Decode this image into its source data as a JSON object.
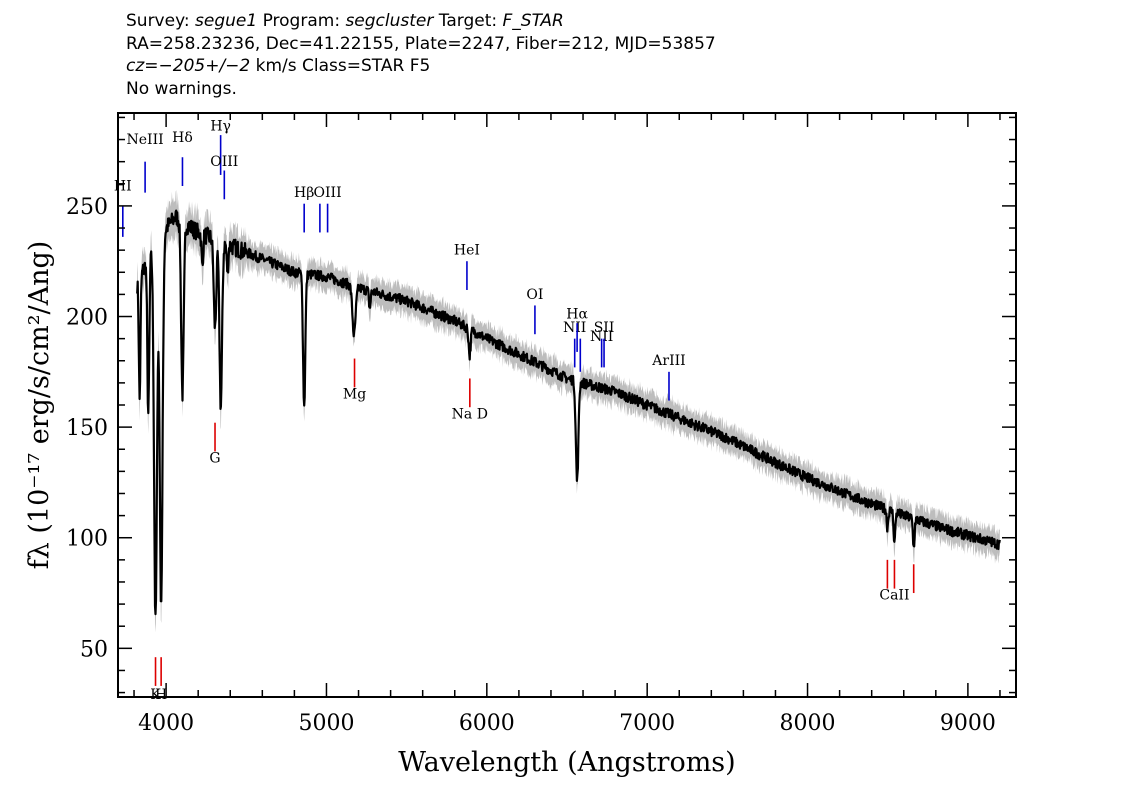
{
  "header": {
    "line1": {
      "survey_label": "Survey: ",
      "survey": "segue1",
      "program_label": " Program: ",
      "program": "segcluster",
      "target_label": " Target: ",
      "target": "F_STAR"
    },
    "line2": "RA=258.23236, Dec=41.22155, Plate=2247, Fiber=212, MJD=53857",
    "line3": {
      "cz_label": "cz=",
      "cz": "−205+/−2",
      "rest": " km/s Class=STAR F5"
    },
    "line4": "No warnings."
  },
  "chart_data": {
    "type": "line",
    "xlabel": "Wavelength (Angstroms)",
    "ylabel": "fλ (10⁻¹⁷ erg/s/cm²/Ang)",
    "xlim": [
      3700,
      9300
    ],
    "ylim": [
      28,
      292
    ],
    "x_ticks": [
      4000,
      5000,
      6000,
      7000,
      8000,
      9000
    ],
    "y_ticks": [
      50,
      100,
      150,
      200,
      250
    ],
    "x_minor_step": 200,
    "y_minor_step": 10,
    "grid": false,
    "colors": {
      "spectrum": "#000000",
      "error_band": "#bdbdbd",
      "emission_lines": "#0000cc",
      "absorption_lines": "#dd0000"
    },
    "continuum": {
      "x": [
        3820,
        3900,
        4000,
        4060,
        4200,
        4400,
        4600,
        4800,
        5000,
        5200,
        5500,
        5800,
        6000,
        6200,
        6500,
        6800,
        7000,
        7200,
        7500,
        7800,
        8000,
        8300,
        8600,
        8900,
        9200
      ],
      "y": [
        215,
        228,
        240,
        245,
        238,
        232,
        226,
        220,
        218,
        213,
        207,
        198,
        190,
        183,
        172,
        166,
        160,
        154,
        145,
        134,
        127,
        118,
        110,
        103,
        97
      ]
    },
    "absorption_features": [
      {
        "x": 3835,
        "depth": 55,
        "width": 5
      },
      {
        "x": 3889,
        "depth": 70,
        "width": 6
      },
      {
        "x": 3934,
        "depth": 170,
        "width": 9
      },
      {
        "x": 3969,
        "depth": 165,
        "width": 9
      },
      {
        "x": 4102,
        "depth": 78,
        "width": 8
      },
      {
        "x": 4226,
        "depth": 15,
        "width": 5
      },
      {
        "x": 4305,
        "depth": 40,
        "width": 8
      },
      {
        "x": 4341,
        "depth": 75,
        "width": 8
      },
      {
        "x": 4383,
        "depth": 12,
        "width": 5
      },
      {
        "x": 4861,
        "depth": 60,
        "width": 7
      },
      {
        "x": 5172,
        "depth": 22,
        "width": 10
      },
      {
        "x": 5270,
        "depth": 8,
        "width": 5
      },
      {
        "x": 5893,
        "depth": 12,
        "width": 6
      },
      {
        "x": 6563,
        "depth": 45,
        "width": 8
      },
      {
        "x": 8498,
        "depth": 8,
        "width": 5
      },
      {
        "x": 8542,
        "depth": 14,
        "width": 5
      },
      {
        "x": 8662,
        "depth": 13,
        "width": 5
      }
    ],
    "emission_lines": [
      {
        "label": "HI",
        "x": 3730,
        "y_top": 250,
        "y_bottom": 236,
        "label_y": 257
      },
      {
        "label": "NeIII",
        "x": 3869,
        "y_top": 270,
        "y_bottom": 256,
        "label_y": 278
      },
      {
        "label": "Hδ",
        "x": 4102,
        "y_top": 272,
        "y_bottom": 259,
        "label_y": 279
      },
      {
        "label": "Hγ",
        "x": 4340,
        "y_top": 282,
        "y_bottom": 264,
        "label_y": 284
      },
      {
        "label": "OIII",
        "x": 4363,
        "y_top": 266,
        "y_bottom": 253,
        "label_y": 268
      },
      {
        "label": "Hβ",
        "x": 4861,
        "y_top": 251,
        "y_bottom": 238,
        "label_y": 254
      },
      {
        "label": "OIII",
        "x": 4959,
        "y_top": 251,
        "y_bottom": 238,
        "label_y": 0
      },
      {
        "label": "OIII",
        "x": 5007,
        "y_top": 251,
        "y_bottom": 238,
        "label_y": 254
      },
      {
        "label": "HeI",
        "x": 5876,
        "y_top": 225,
        "y_bottom": 212,
        "label_y": 228
      },
      {
        "label": "OI",
        "x": 6300,
        "y_top": 205,
        "y_bottom": 192,
        "label_y": 208
      },
      {
        "label": "NII",
        "x": 6548,
        "y_top": 190,
        "y_bottom": 177,
        "label_y": 193
      },
      {
        "label": "Hα",
        "x": 6563,
        "y_top": 197,
        "y_bottom": 184,
        "label_y": 199
      },
      {
        "label": "NII",
        "x": 6583,
        "y_top": 190,
        "y_bottom": 175,
        "label_y": 0
      },
      {
        "label": "NII",
        "x": 6716,
        "y_top": 190,
        "y_bottom": 177,
        "label_y": 189
      },
      {
        "label": "SII",
        "x": 6731,
        "y_top": 190,
        "y_bottom": 177,
        "label_y": 193
      },
      {
        "label": "ArIII",
        "x": 7136,
        "y_top": 175,
        "y_bottom": 162,
        "label_y": 178
      }
    ],
    "absorption_lines": [
      {
        "label": "K",
        "x": 3934,
        "y_top": 46,
        "y_bottom": 33,
        "label_y": 27
      },
      {
        "label": "H",
        "x": 3969,
        "y_top": 46,
        "y_bottom": 33,
        "label_y": 27
      },
      {
        "label": "G",
        "x": 4305,
        "y_top": 152,
        "y_bottom": 139,
        "label_y": 134
      },
      {
        "label": "Mg",
        "x": 5175,
        "y_top": 181,
        "y_bottom": 168,
        "label_y": 163
      },
      {
        "label": "Na D",
        "x": 5894,
        "y_top": 172,
        "y_bottom": 159,
        "label_y": 154
      },
      {
        "label": "CaII",
        "x": 8498,
        "y_top": 90,
        "y_bottom": 77,
        "label_y": 0
      },
      {
        "label": "CaII",
        "x": 8542,
        "y_top": 90,
        "y_bottom": 77,
        "label_y": 72
      },
      {
        "label": "CaII",
        "x": 8662,
        "y_top": 88,
        "y_bottom": 75,
        "label_y": 0
      }
    ]
  }
}
